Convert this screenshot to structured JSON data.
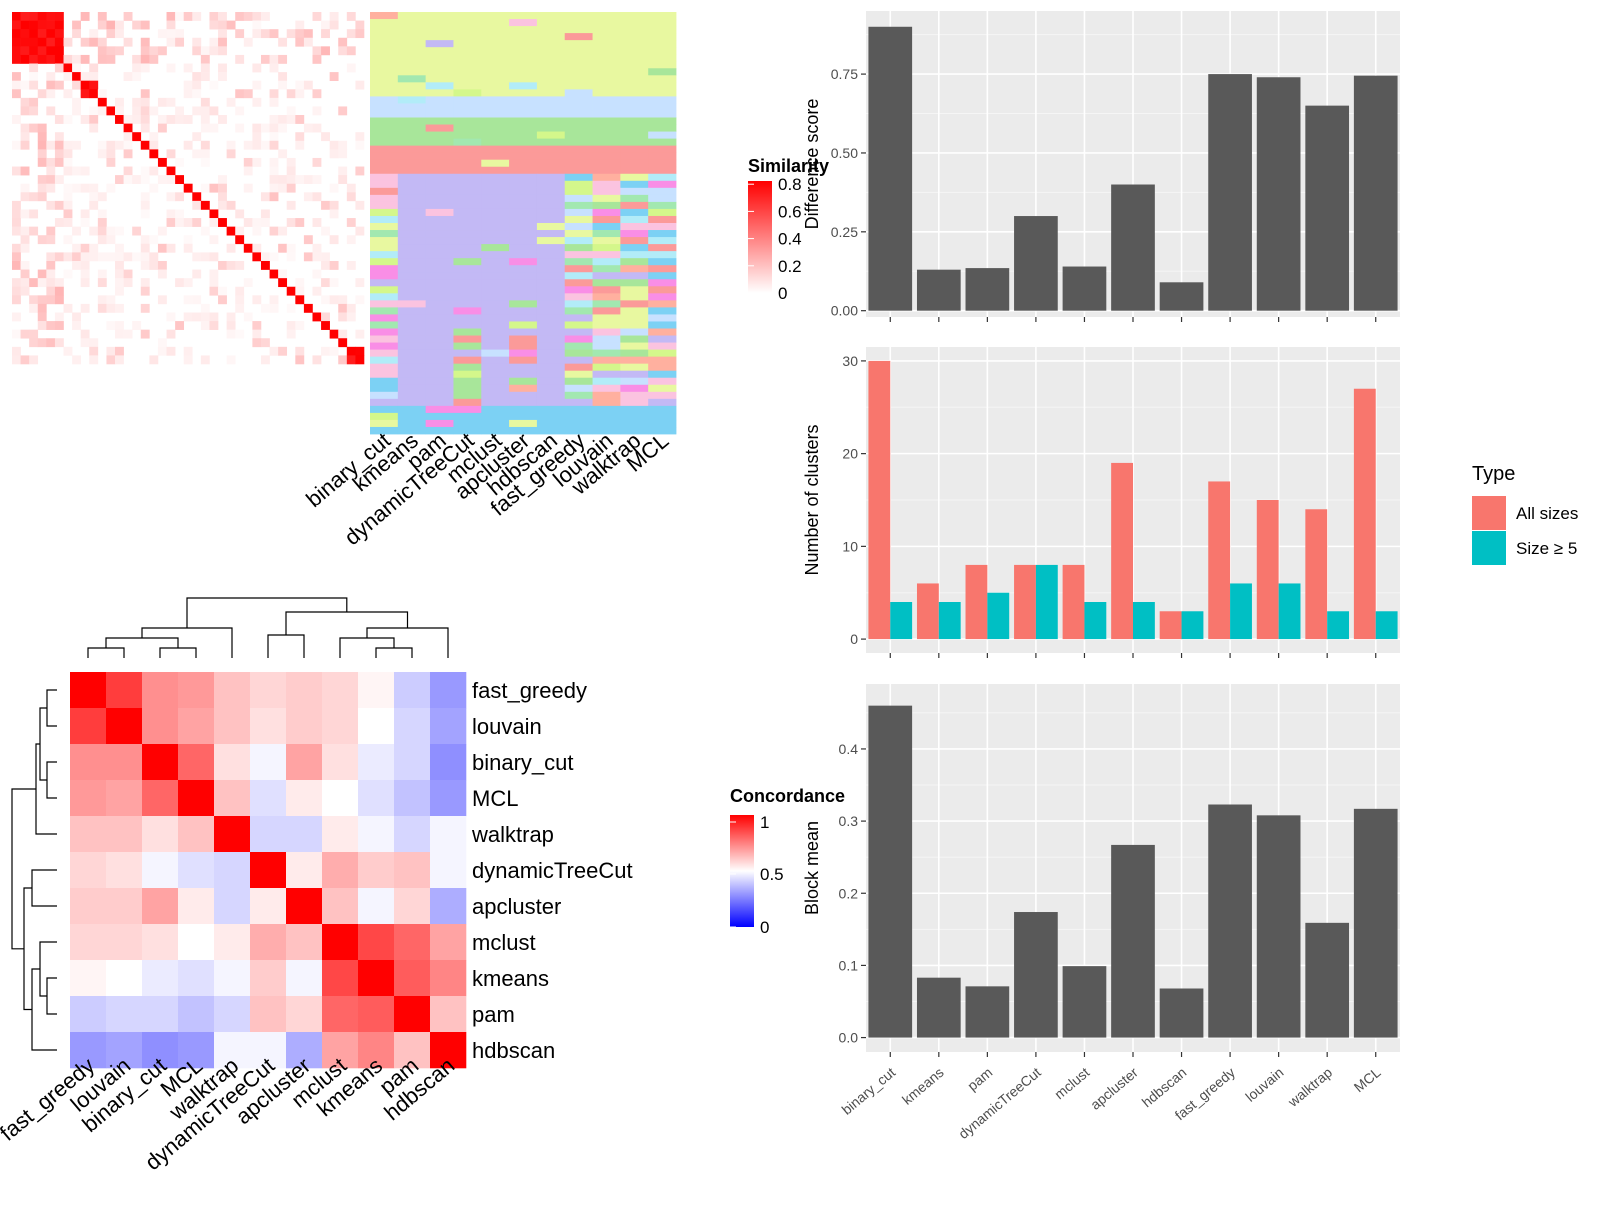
{
  "chart_data": [
    {
      "type": "heatmap",
      "legend": {
        "title": "Similarity",
        "ticks": [
          "0",
          "0.2",
          "0.4",
          "0.6",
          "0.8"
        ]
      },
      "block_sizes": [
        6,
        1,
        1,
        2,
        1,
        1,
        1,
        1,
        1,
        1,
        1,
        1,
        1,
        1,
        1,
        1,
        1,
        1,
        1,
        1,
        1,
        1,
        1,
        1,
        1,
        1,
        1,
        1,
        1,
        1,
        1,
        1,
        1,
        2
      ]
    },
    {
      "type": "heatmap",
      "columns": [
        "binary_cut",
        "kmeans",
        "pam",
        "dynamicTreeCut",
        "mclust",
        "apcluster",
        "hdbscan",
        "fast_greedy",
        "louvain",
        "walktrap",
        "MCL"
      ]
    },
    {
      "type": "heatmap",
      "rows": [
        "fast_greedy",
        "louvain",
        "binary_cut",
        "MCL",
        "walktrap",
        "dynamicTreeCut",
        "apcluster",
        "mclust",
        "kmeans",
        "pam",
        "hdbscan"
      ],
      "columns": [
        "fast_greedy",
        "louvain",
        "binary_cut",
        "MCL",
        "walktrap",
        "dynamicTreeCut",
        "apcluster",
        "mclust",
        "kmeans",
        "pam",
        "hdbscan"
      ],
      "values": [
        [
          1.0,
          0.88,
          0.72,
          0.7,
          0.62,
          0.58,
          0.6,
          0.58,
          0.52,
          0.4,
          0.3
        ],
        [
          0.88,
          1.0,
          0.72,
          0.68,
          0.62,
          0.56,
          0.6,
          0.58,
          0.5,
          0.42,
          0.32
        ],
        [
          0.72,
          0.72,
          1.0,
          0.8,
          0.56,
          0.48,
          0.68,
          0.56,
          0.46,
          0.42,
          0.28
        ],
        [
          0.7,
          0.68,
          0.8,
          1.0,
          0.62,
          0.44,
          0.54,
          0.5,
          0.44,
          0.38,
          0.3
        ],
        [
          0.62,
          0.62,
          0.56,
          0.62,
          1.0,
          0.42,
          0.42,
          0.54,
          0.48,
          0.42,
          0.48
        ],
        [
          0.58,
          0.56,
          0.48,
          0.44,
          0.42,
          1.0,
          0.54,
          0.66,
          0.6,
          0.62,
          0.48
        ],
        [
          0.6,
          0.6,
          0.68,
          0.54,
          0.42,
          0.54,
          1.0,
          0.62,
          0.48,
          0.58,
          0.34
        ],
        [
          0.58,
          0.58,
          0.56,
          0.5,
          0.54,
          0.66,
          0.62,
          1.0,
          0.86,
          0.8,
          0.68
        ],
        [
          0.52,
          0.5,
          0.46,
          0.44,
          0.48,
          0.6,
          0.48,
          0.86,
          1.0,
          0.82,
          0.74
        ],
        [
          0.4,
          0.42,
          0.42,
          0.38,
          0.42,
          0.62,
          0.58,
          0.8,
          0.82,
          1.0,
          0.62
        ],
        [
          0.3,
          0.32,
          0.28,
          0.3,
          0.48,
          0.48,
          0.34,
          0.68,
          0.74,
          0.62,
          1.0
        ]
      ],
      "legend": {
        "title": "Concordance",
        "ticks": [
          "1",
          "0.5",
          "0"
        ]
      },
      "colors": {
        "low": "#0000ff",
        "mid": "#ffffff",
        "high": "#ff0000"
      }
    },
    {
      "type": "bar",
      "categories": [
        "binary_cut",
        "kmeans",
        "pam",
        "dynamicTreeCut",
        "mclust",
        "apcluster",
        "hdbscan",
        "fast_greedy",
        "louvain",
        "walktrap",
        "MCL"
      ],
      "values": [
        0.9,
        0.13,
        0.135,
        0.3,
        0.14,
        0.4,
        0.09,
        0.75,
        0.74,
        0.65,
        0.745
      ],
      "ylabel": "Difference score",
      "ylim": [
        -0.02,
        0.95
      ],
      "yticks": [
        "0.00",
        "0.25",
        "0.50",
        "0.75"
      ]
    },
    {
      "type": "bar",
      "categories": [
        "binary_cut",
        "kmeans",
        "pam",
        "dynamicTreeCut",
        "mclust",
        "apcluster",
        "hdbscan",
        "fast_greedy",
        "louvain",
        "walktrap",
        "MCL"
      ],
      "series": [
        {
          "name": "All sizes",
          "color": "#f8766d",
          "values": [
            30,
            6,
            8,
            8,
            8,
            19,
            3,
            17,
            15,
            14,
            27
          ]
        },
        {
          "name": "Size ≥ 5",
          "color": "#00bfc4",
          "values": [
            4,
            4,
            5,
            8,
            4,
            4,
            3,
            6,
            6,
            3,
            3
          ]
        }
      ],
      "ylabel": "Number of clusters",
      "ylim": [
        -1.5,
        31.5
      ],
      "yticks": [
        "0",
        "10",
        "20",
        "30"
      ],
      "legend": {
        "title": "Type",
        "position": "right"
      }
    },
    {
      "type": "bar",
      "categories": [
        "binary_cut",
        "kmeans",
        "pam",
        "dynamicTreeCut",
        "mclust",
        "apcluster",
        "hdbscan",
        "fast_greedy",
        "louvain",
        "walktrap",
        "MCL"
      ],
      "values": [
        0.46,
        0.083,
        0.071,
        0.174,
        0.099,
        0.267,
        0.068,
        0.323,
        0.308,
        0.159,
        0.317
      ],
      "ylabel": "Block mean",
      "ylim": [
        -0.02,
        0.49
      ],
      "yticks": [
        "0.0",
        "0.1",
        "0.2",
        "0.3",
        "0.4"
      ]
    }
  ]
}
